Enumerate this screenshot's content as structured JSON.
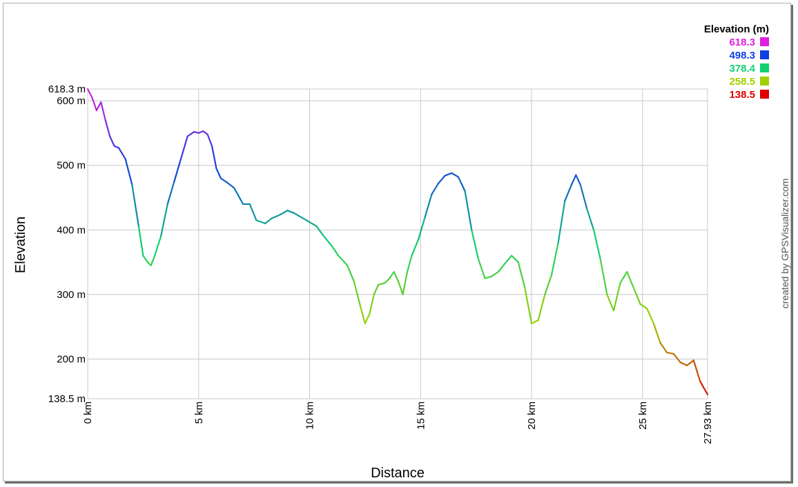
{
  "chart_data": {
    "type": "line",
    "xlabel": "Distance",
    "ylabel": "Elevation",
    "xlim": [
      0,
      27.93
    ],
    "ylim": [
      138.5,
      618.3
    ],
    "grid": true,
    "x_ticks": [
      "0 km",
      "5 km",
      "10 km",
      "15 km",
      "20 km",
      "25 km",
      "27.93 km"
    ],
    "x_tick_values": [
      0,
      5,
      10,
      15,
      20,
      25,
      27.93
    ],
    "y_ticks": [
      "138.5 m",
      "200 m",
      "300 m",
      "400 m",
      "500 m",
      "600 m",
      "618.3 m"
    ],
    "y_tick_values": [
      138.5,
      200,
      300,
      400,
      500,
      600,
      618.3
    ],
    "legend": {
      "title": "Elevation (m)",
      "placement": "top-right",
      "entries": [
        {
          "label": "618.3",
          "color": "#e020e0"
        },
        {
          "label": "498.3",
          "color": "#1040e0"
        },
        {
          "label": "378.4",
          "color": "#10d070"
        },
        {
          "label": "258.5",
          "color": "#a0d000"
        },
        {
          "label": "138.5",
          "color": "#e00000"
        }
      ]
    },
    "credit": "created by GPSVisualizer.com",
    "series": [
      {
        "x": [
          0,
          0.2,
          0.4,
          0.6,
          0.8,
          1.0,
          1.2,
          1.4,
          1.7,
          2.0,
          2.3,
          2.5,
          2.7,
          2.85,
          3.0,
          3.3,
          3.6,
          3.9,
          4.2,
          4.5,
          4.8,
          5.0,
          5.2,
          5.4,
          5.6,
          5.8,
          6.0,
          6.3,
          6.6,
          7.0,
          7.3,
          7.6,
          8.0,
          8.3,
          8.7,
          9.0,
          9.3,
          9.6,
          10.0,
          10.3,
          10.6,
          11.0,
          11.3,
          11.7,
          12.0,
          12.3,
          12.5,
          12.7,
          12.9,
          13.1,
          13.4,
          13.6,
          13.8,
          14.0,
          14.2,
          14.4,
          14.6,
          14.9,
          15.2,
          15.5,
          15.8,
          16.1,
          16.4,
          16.7,
          17.0,
          17.3,
          17.6,
          17.9,
          18.2,
          18.5,
          18.8,
          19.1,
          19.4,
          19.7,
          20.0,
          20.3,
          20.6,
          20.9,
          21.2,
          21.5,
          21.8,
          22.0,
          22.2,
          22.5,
          22.8,
          23.1,
          23.4,
          23.7,
          24.0,
          24.3,
          24.6,
          24.9,
          25.2,
          25.5,
          25.8,
          26.1,
          26.4,
          26.7,
          27.0,
          27.3,
          27.6,
          27.93
        ],
        "y": [
          618.3,
          605,
          585,
          598,
          570,
          545,
          530,
          527,
          510,
          470,
          405,
          360,
          350,
          345,
          358,
          390,
          440,
          475,
          510,
          545,
          552,
          550,
          553,
          548,
          530,
          495,
          480,
          473,
          465,
          440,
          440,
          415,
          410,
          418,
          424,
          430,
          426,
          420,
          412,
          406,
          392,
          375,
          360,
          345,
          320,
          280,
          255,
          270,
          300,
          315,
          318,
          325,
          335,
          320,
          300,
          335,
          360,
          385,
          420,
          455,
          472,
          484,
          488,
          482,
          460,
          400,
          355,
          325,
          328,
          335,
          348,
          360,
          350,
          310,
          255,
          260,
          300,
          330,
          380,
          445,
          470,
          485,
          470,
          432,
          400,
          355,
          300,
          275,
          318,
          335,
          310,
          285,
          278,
          255,
          225,
          210,
          208,
          195,
          190,
          198,
          165,
          145
        ]
      }
    ]
  }
}
